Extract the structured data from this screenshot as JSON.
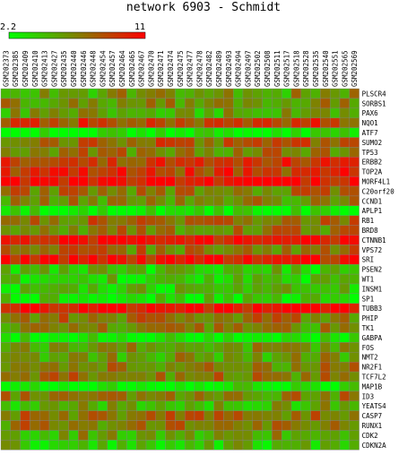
{
  "chart_data": {
    "type": "heatmap",
    "title": "network 6903 - Schmidt",
    "scale": {
      "min_label": "2.2",
      "max_label": "11",
      "min": 2.2,
      "max": 11
    },
    "colors": {
      "low": "#00ff00",
      "mid": "#808000",
      "high": "#ff0000",
      "grid": "#808080"
    },
    "columns": [
      "GSM202373",
      "GSM202385",
      "GSM202409",
      "GSM202410",
      "GSM202413",
      "GSM202427",
      "GSM202435",
      "GSM202440",
      "GSM202446",
      "GSM202448",
      "GSM202454",
      "GSM202457",
      "GSM202464",
      "GSM202465",
      "GSM202467",
      "GSM202470",
      "GSM202471",
      "GSM202474",
      "GSM202475",
      "GSM202477",
      "GSM202478",
      "GSM202482",
      "GSM202489",
      "GSM202493",
      "GSM202494",
      "GSM202497",
      "GSM202502",
      "GSM202508",
      "GSM202511",
      "GSM202517",
      "GSM202518",
      "GSM202528",
      "GSM202535",
      "GSM202540",
      "GSM202551",
      "GSM202565",
      "GSM202569"
    ],
    "rows": [
      "PLSCR4",
      "SORBS1",
      "PAX6",
      "NQO1",
      "ATF7",
      "SUMO2",
      "TP53",
      "ERBB2",
      "TOP2A",
      "MORF4L1",
      "C20orf20",
      "CCND1",
      "APLP1",
      "RB1",
      "BRD8",
      "CTNNB1",
      "VPS72",
      "SRI",
      "PSEN2",
      "WT1",
      "INSM1",
      "SP1",
      "TUBB3",
      "PHIP",
      "TK1",
      "GABPA",
      "FOS",
      "NMT2",
      "NR2F1",
      "TCF7L2",
      "MAP1B",
      "ID3",
      "YEATS4",
      "CASP7",
      "RUNX1",
      "CDK2",
      "CDKN2A"
    ],
    "row_bias": [
      -0.2,
      -0.05,
      -0.3,
      0.45,
      -0.95,
      0.25,
      0.05,
      0.55,
      0.55,
      0.9,
      0.1,
      -0.05,
      -0.85,
      0.15,
      0.05,
      0.9,
      0.1,
      0.85,
      -0.55,
      -0.6,
      -0.55,
      -0.7,
      0.9,
      0.1,
      -0.1,
      -0.9,
      -0.2,
      -0.2,
      0.0,
      0.05,
      -0.9,
      0.0,
      -0.35,
      0.1,
      0.05,
      -0.25,
      -0.5
    ]
  }
}
